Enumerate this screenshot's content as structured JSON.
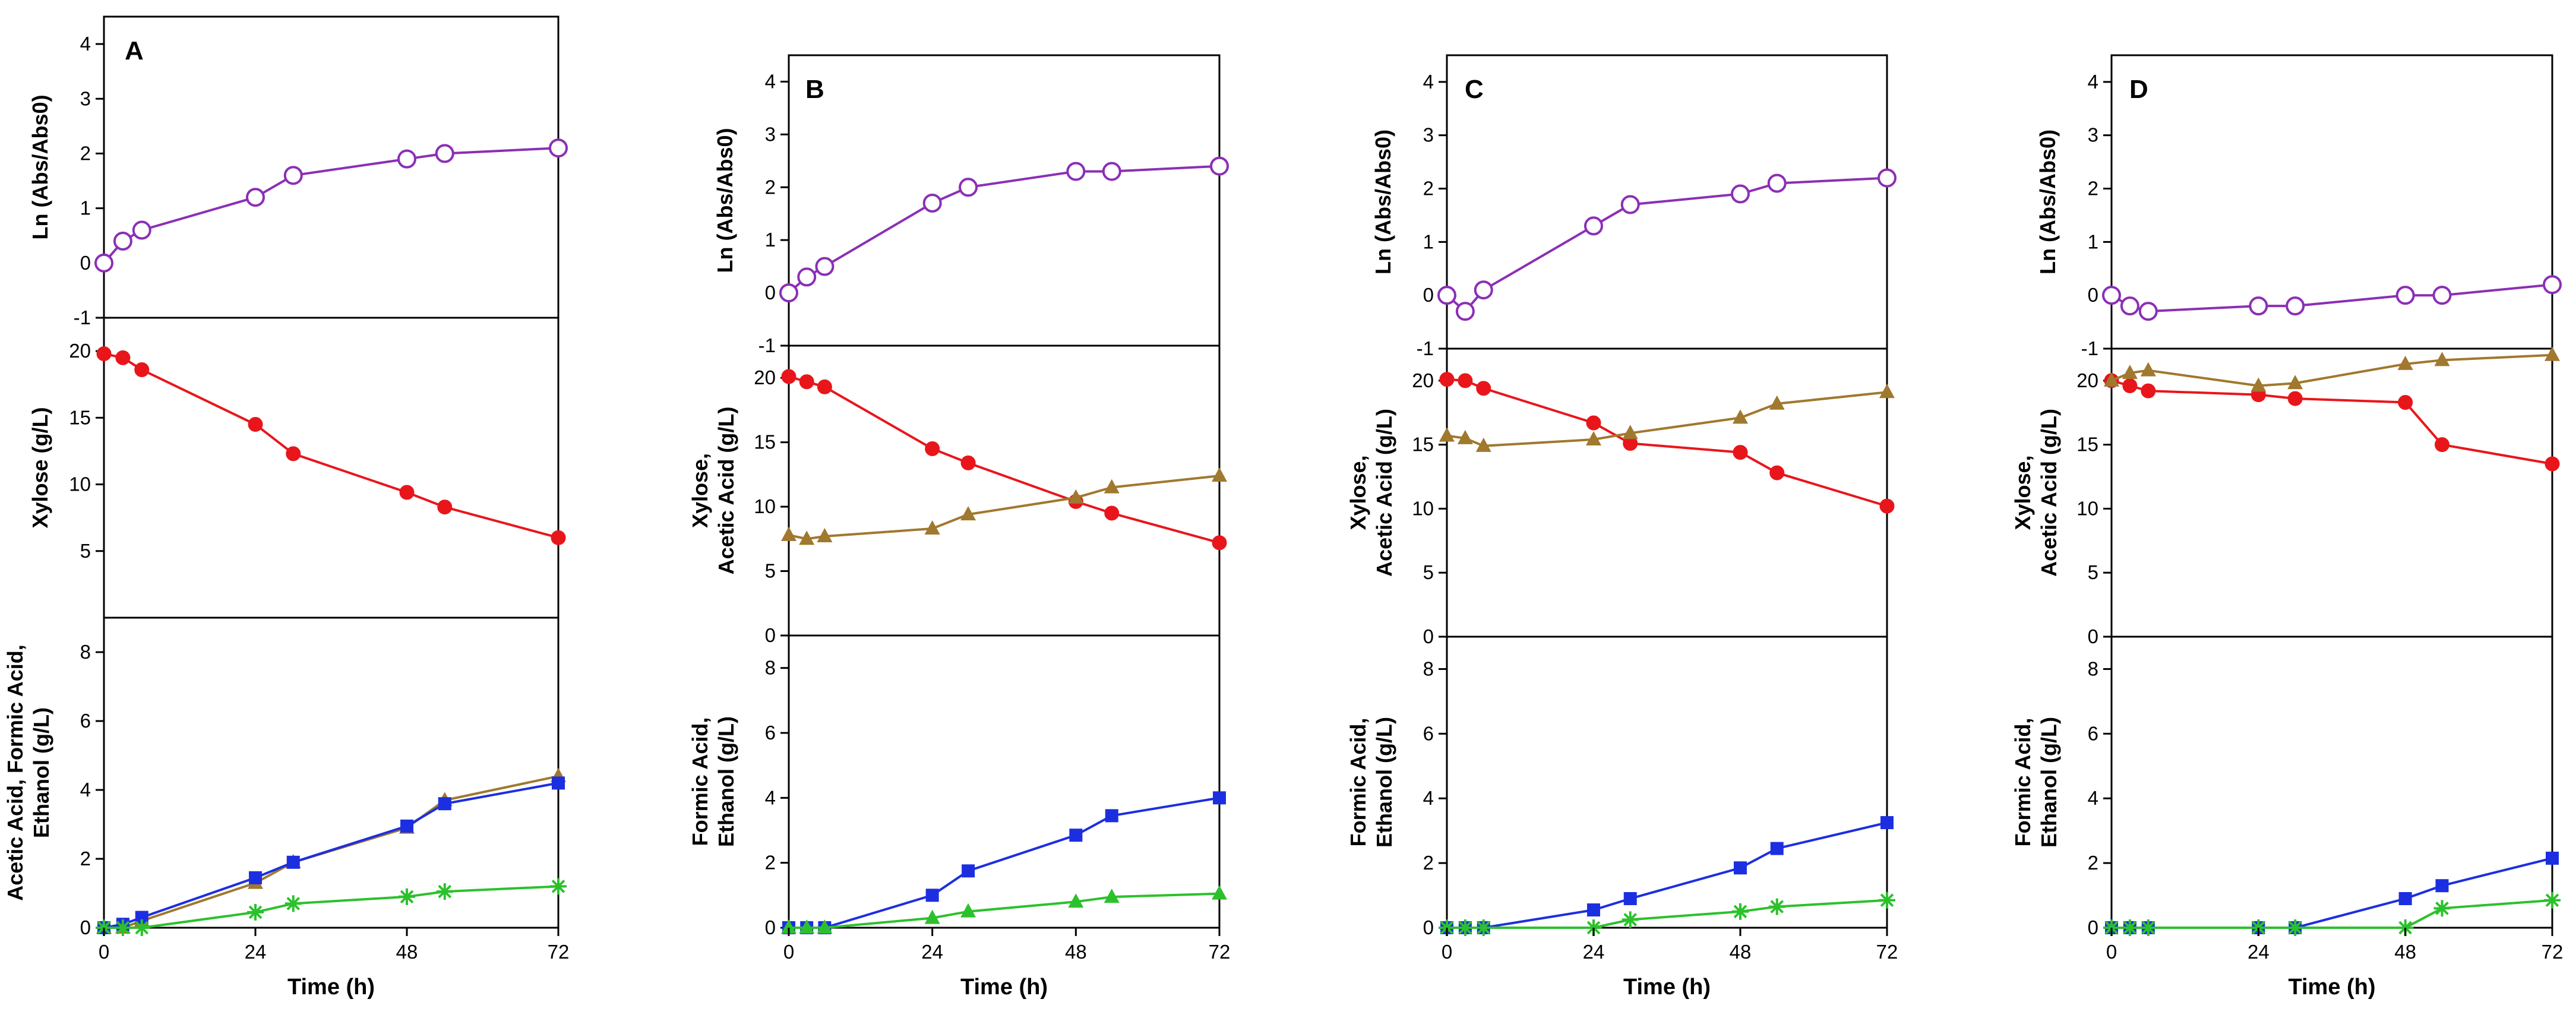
{
  "chart_data": [
    {
      "panel": "A",
      "type": "line",
      "xlabel": "Time (h)",
      "x_ticks": [
        "0",
        "24",
        "48",
        "72"
      ],
      "xlim": [
        0,
        72
      ],
      "subplots": [
        {
          "ylabel": [
            "Ln (Abs/Abs0)"
          ],
          "ylim": [
            -1,
            4.5
          ],
          "y_ticks": [
            "-1",
            "0",
            "1",
            "2",
            "3",
            "4"
          ],
          "series": [
            {
              "name": "Ln (Abs/Abs0)",
              "color": "#8B2FB5",
              "marker": "open-circle",
              "x": [
                0,
                3,
                6,
                24,
                30,
                48,
                54,
                72
              ],
              "y": [
                0.0,
                0.4,
                0.6,
                1.2,
                1.6,
                1.9,
                2.0,
                2.1
              ]
            }
          ]
        },
        {
          "ylabel": [
            "Xylose (g/L)"
          ],
          "ylim": [
            0,
            22.5
          ],
          "y_ticks": [
            "5",
            "10",
            "15",
            "20"
          ],
          "series": [
            {
              "name": "Xylose",
              "color": "#E8161B",
              "marker": "circle",
              "x": [
                0,
                3,
                6,
                24,
                30,
                48,
                54,
                72
              ],
              "y": [
                19.8,
                19.5,
                18.6,
                14.5,
                12.3,
                9.4,
                8.3,
                6.0
              ]
            }
          ]
        },
        {
          "ylabel": [
            "Acetic Acid, Formic Acid,",
            "Ethanol (g/L)"
          ],
          "ylim": [
            0,
            9
          ],
          "y_ticks": [
            "0",
            "2",
            "4",
            "6",
            "8"
          ],
          "series": [
            {
              "name": "Acetic Acid",
              "color": "#A0782E",
              "marker": "triangle",
              "x": [
                0,
                3,
                6,
                24,
                30,
                48,
                54,
                72
              ],
              "y": [
                0.0,
                0.0,
                0.2,
                1.3,
                1.9,
                2.9,
                3.7,
                4.4
              ]
            },
            {
              "name": "Formic Acid",
              "color": "#1C2FE0",
              "marker": "square",
              "x": [
                0,
                3,
                6,
                24,
                30,
                48,
                54,
                72
              ],
              "y": [
                0.0,
                0.1,
                0.3,
                1.45,
                1.9,
                2.95,
                3.6,
                4.2
              ]
            },
            {
              "name": "Ethanol",
              "color": "#2CC12C",
              "marker": "star",
              "x": [
                0,
                3,
                6,
                24,
                30,
                48,
                54,
                72
              ],
              "y": [
                0.0,
                0.0,
                0.0,
                0.45,
                0.7,
                0.9,
                1.05,
                1.2
              ]
            }
          ]
        }
      ]
    },
    {
      "panel": "B",
      "type": "line",
      "xlabel": "Time (h)",
      "x_ticks": [
        "0",
        "24",
        "48",
        "72"
      ],
      "xlim": [
        0,
        72
      ],
      "subplots": [
        {
          "ylabel": [
            "Ln (Abs/Abs0)"
          ],
          "ylim": [
            -1,
            4.5
          ],
          "y_ticks": [
            "-1",
            "0",
            "1",
            "2",
            "3",
            "4"
          ],
          "series": [
            {
              "name": "Ln (Abs/Abs0)",
              "color": "#8B2FB5",
              "marker": "open-circle",
              "x": [
                0,
                3,
                6,
                24,
                30,
                48,
                54,
                72
              ],
              "y": [
                0.0,
                0.3,
                0.5,
                1.7,
                2.0,
                2.3,
                2.3,
                2.4
              ]
            }
          ]
        },
        {
          "ylabel": [
            "Xylose,",
            "Acetic Acid (g/L)"
          ],
          "ylim": [
            0,
            22.5
          ],
          "y_ticks": [
            "0",
            "5",
            "10",
            "15",
            "20"
          ],
          "series": [
            {
              "name": "Xylose",
              "color": "#E8161B",
              "marker": "circle",
              "x": [
                0,
                3,
                6,
                24,
                30,
                48,
                54,
                72
              ],
              "y": [
                20.1,
                19.7,
                19.3,
                14.5,
                13.4,
                10.4,
                9.5,
                7.2
              ]
            },
            {
              "name": "Acetic Acid",
              "color": "#A0782E",
              "marker": "triangle",
              "x": [
                0,
                3,
                6,
                24,
                30,
                48,
                54,
                72
              ],
              "y": [
                7.8,
                7.5,
                7.7,
                8.3,
                9.4,
                10.7,
                11.5,
                12.4
              ]
            }
          ]
        },
        {
          "ylabel": [
            "Formic Acid,",
            "Ethanol (g/L)"
          ],
          "ylim": [
            0,
            9
          ],
          "y_ticks": [
            "0",
            "2",
            "4",
            "6",
            "8"
          ],
          "series": [
            {
              "name": "Formic Acid",
              "color": "#1C2FE0",
              "marker": "square",
              "x": [
                0,
                3,
                6,
                24,
                30,
                48,
                54,
                72
              ],
              "y": [
                0.0,
                0.0,
                0.0,
                1.0,
                1.75,
                2.85,
                3.45,
                4.0
              ]
            },
            {
              "name": "Ethanol",
              "color": "#2CC12C",
              "marker": "triangle",
              "x": [
                0,
                3,
                6,
                24,
                30,
                48,
                54,
                72
              ],
              "y": [
                0.0,
                0.0,
                0.0,
                0.3,
                0.5,
                0.8,
                0.95,
                1.05
              ]
            }
          ]
        }
      ]
    },
    {
      "panel": "C",
      "type": "line",
      "xlabel": "Time (h)",
      "x_ticks": [
        "0",
        "24",
        "48",
        "72"
      ],
      "xlim": [
        0,
        72
      ],
      "subplots": [
        {
          "ylabel": [
            "Ln (Abs/Abs0)"
          ],
          "ylim": [
            -1,
            4.5
          ],
          "y_ticks": [
            "-1",
            "0",
            "1",
            "2",
            "3",
            "4"
          ],
          "series": [
            {
              "name": "Ln (Abs/Abs0)",
              "color": "#8B2FB5",
              "marker": "open-circle",
              "x": [
                0,
                3,
                6,
                24,
                30,
                48,
                54,
                72
              ],
              "y": [
                0.0,
                -0.3,
                0.1,
                1.3,
                1.7,
                1.9,
                2.1,
                2.2
              ]
            }
          ]
        },
        {
          "ylabel": [
            "Xylose,",
            "Acetic Acid (g/L)"
          ],
          "ylim": [
            0,
            22.5
          ],
          "y_ticks": [
            "0",
            "5",
            "10",
            "15",
            "20"
          ],
          "series": [
            {
              "name": "Xylose",
              "color": "#E8161B",
              "marker": "circle",
              "x": [
                0,
                3,
                6,
                24,
                30,
                48,
                54,
                72
              ],
              "y": [
                20.1,
                20.0,
                19.4,
                16.7,
                15.1,
                14.4,
                12.8,
                10.2
              ]
            },
            {
              "name": "Acetic Acid",
              "color": "#A0782E",
              "marker": "triangle",
              "x": [
                0,
                3,
                6,
                24,
                30,
                48,
                54,
                72
              ],
              "y": [
                15.7,
                15.5,
                14.9,
                15.4,
                15.9,
                17.1,
                18.2,
                19.1
              ]
            }
          ]
        },
        {
          "ylabel": [
            "Formic Acid,",
            "Ethanol (g/L)"
          ],
          "ylim": [
            0,
            9
          ],
          "y_ticks": [
            "0",
            "2",
            "4",
            "6",
            "8"
          ],
          "series": [
            {
              "name": "Formic Acid",
              "color": "#1C2FE0",
              "marker": "square",
              "x": [
                0,
                3,
                6,
                24,
                30,
                48,
                54,
                72
              ],
              "y": [
                0.0,
                0.0,
                0.0,
                0.55,
                0.9,
                1.85,
                2.45,
                3.25
              ]
            },
            {
              "name": "Ethanol",
              "color": "#2CC12C",
              "marker": "star",
              "x": [
                0,
                3,
                6,
                24,
                30,
                48,
                54,
                72
              ],
              "y": [
                0.0,
                0.0,
                0.0,
                0.0,
                0.25,
                0.5,
                0.65,
                0.85
              ]
            }
          ]
        }
      ]
    },
    {
      "panel": "D",
      "type": "line",
      "xlabel": "Time (h)",
      "x_ticks": [
        "0",
        "24",
        "48",
        "72"
      ],
      "xlim": [
        0,
        72
      ],
      "subplots": [
        {
          "ylabel": [
            "Ln (Abs/Abs0)"
          ],
          "ylim": [
            -1,
            4.5
          ],
          "y_ticks": [
            "-1",
            "0",
            "1",
            "2",
            "3",
            "4"
          ],
          "series": [
            {
              "name": "Ln (Abs/Abs0)",
              "color": "#8B2FB5",
              "marker": "open-circle",
              "x": [
                0,
                3,
                6,
                24,
                30,
                48,
                54,
                72
              ],
              "y": [
                0.0,
                -0.2,
                -0.3,
                -0.2,
                -0.2,
                0.0,
                0.0,
                0.2
              ]
            }
          ]
        },
        {
          "ylabel": [
            "Xylose,",
            "Acetic Acid (g/L)"
          ],
          "ylim": [
            0,
            22.5
          ],
          "y_ticks": [
            "0",
            "5",
            "10",
            "15",
            "20"
          ],
          "series": [
            {
              "name": "Xylose",
              "color": "#E8161B",
              "marker": "circle",
              "x": [
                0,
                3,
                6,
                24,
                30,
                48,
                54,
                72
              ],
              "y": [
                20.0,
                19.6,
                19.2,
                18.9,
                18.6,
                18.3,
                15.0,
                13.5
              ]
            },
            {
              "name": "Acetic Acid",
              "color": "#A0782E",
              "marker": "triangle",
              "x": [
                0,
                3,
                6,
                24,
                30,
                48,
                54,
                72
              ],
              "y": [
                20.0,
                20.6,
                20.8,
                19.6,
                19.8,
                21.3,
                21.6,
                22.0
              ]
            }
          ]
        },
        {
          "ylabel": [
            "Formic Acid,",
            "Ethanol (g/L)"
          ],
          "ylim": [
            0,
            9
          ],
          "y_ticks": [
            "0",
            "2",
            "4",
            "6",
            "8"
          ],
          "series": [
            {
              "name": "Formic Acid",
              "color": "#1C2FE0",
              "marker": "square",
              "x": [
                0,
                3,
                6,
                24,
                30,
                48,
                54,
                72
              ],
              "y": [
                0.0,
                0.0,
                0.0,
                0.0,
                0.0,
                0.9,
                1.3,
                2.15
              ]
            },
            {
              "name": "Ethanol",
              "color": "#2CC12C",
              "marker": "star",
              "x": [
                0,
                3,
                6,
                24,
                30,
                48,
                54,
                72
              ],
              "y": [
                0.0,
                0.0,
                0.0,
                0.0,
                0.0,
                0.0,
                0.6,
                0.85
              ]
            }
          ]
        }
      ]
    }
  ]
}
